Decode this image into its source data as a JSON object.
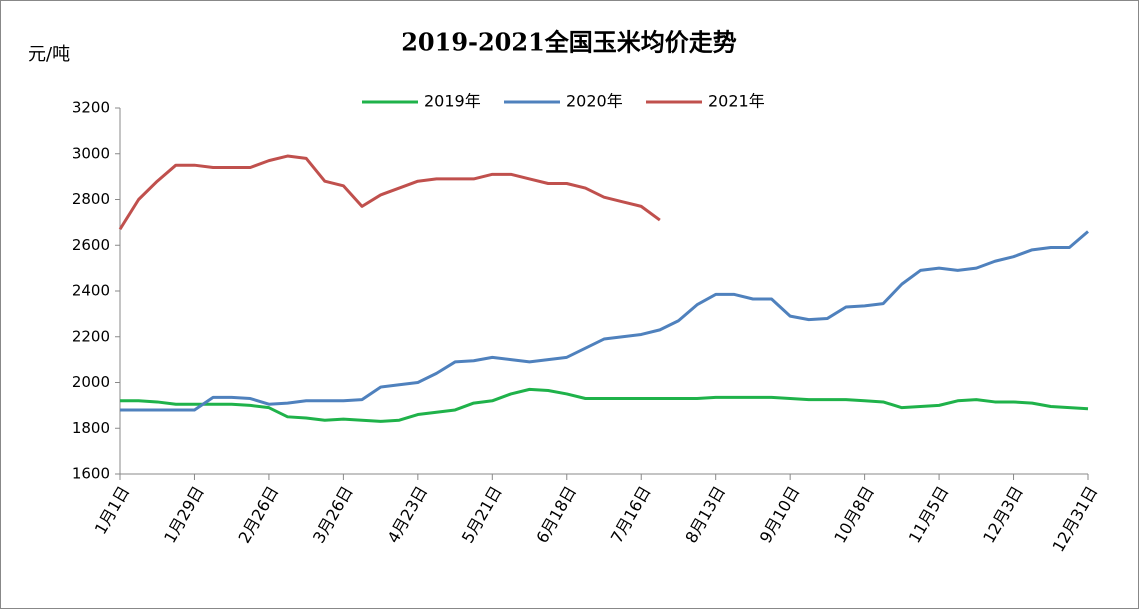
{
  "chart_data": {
    "type": "line",
    "title": "2019-2021全国玉米均价走势",
    "y_label": "元/吨",
    "x": [
      1,
      8,
      15,
      22,
      29,
      36,
      43,
      50,
      57,
      64,
      71,
      78,
      85,
      92,
      99,
      106,
      113,
      120,
      127,
      134,
      141,
      148,
      155,
      162,
      169,
      176,
      183,
      190,
      197,
      204,
      211,
      218,
      225,
      232,
      239,
      246,
      253,
      260,
      267,
      274,
      281,
      288,
      295,
      302,
      309,
      316,
      323,
      330,
      337,
      344,
      351,
      358,
      365
    ],
    "xlim": [
      1,
      365
    ],
    "xticks": [
      {
        "value": 1,
        "label": "1月1日"
      },
      {
        "value": 29,
        "label": "1月29日"
      },
      {
        "value": 57,
        "label": "2月26日"
      },
      {
        "value": 85,
        "label": "3月26日"
      },
      {
        "value": 113,
        "label": "4月23日"
      },
      {
        "value": 141,
        "label": "5月21日"
      },
      {
        "value": 169,
        "label": "6月18日"
      },
      {
        "value": 197,
        "label": "7月16日"
      },
      {
        "value": 225,
        "label": "8月13日"
      },
      {
        "value": 253,
        "label": "9月10日"
      },
      {
        "value": 281,
        "label": "10月8日"
      },
      {
        "value": 309,
        "label": "11月5日"
      },
      {
        "value": 337,
        "label": "12月3日"
      },
      {
        "value": 365,
        "label": "12月31日"
      }
    ],
    "ylim": [
      1600,
      3200
    ],
    "yticks": [
      1600,
      1800,
      2000,
      2200,
      2400,
      2600,
      2800,
      3000,
      3200
    ],
    "legend": "top",
    "series": [
      {
        "name": "2019年",
        "color": "#1fb24a",
        "values": [
          1920,
          1920,
          1915,
          1905,
          1905,
          1905,
          1905,
          1900,
          1890,
          1850,
          1845,
          1835,
          1840,
          1835,
          1830,
          1835,
          1860,
          1870,
          1880,
          1910,
          1920,
          1950,
          1970,
          1965,
          1950,
          1930,
          1930,
          1930,
          1930,
          1930,
          1930,
          1930,
          1935,
          1935,
          1935,
          1935,
          1930,
          1925,
          1925,
          1925,
          1920,
          1915,
          1890,
          1895,
          1900,
          1920,
          1925,
          1915,
          1915,
          1910,
          1895,
          1890,
          1885
        ]
      },
      {
        "name": "2020年",
        "color": "#4f81bd",
        "values": [
          1880,
          1880,
          1880,
          1880,
          1880,
          1935,
          1935,
          1930,
          1905,
          1910,
          1920,
          1920,
          1920,
          1925,
          1980,
          1990,
          2000,
          2040,
          2090,
          2095,
          2110,
          2100,
          2090,
          2100,
          2110,
          2150,
          2190,
          2200,
          2210,
          2230,
          2270,
          2340,
          2385,
          2385,
          2365,
          2365,
          2290,
          2275,
          2280,
          2330,
          2335,
          2345,
          2430,
          2490,
          2500,
          2490,
          2500,
          2530,
          2550,
          2580,
          2590,
          2590,
          2660
        ]
      },
      {
        "name": "2021年",
        "color": "#c0504d",
        "values": [
          2670,
          2800,
          2880,
          2950,
          2950,
          2940,
          2940,
          2940,
          2970,
          2990,
          2980,
          2880,
          2860,
          2770,
          2820,
          2850,
          2880,
          2890,
          2890,
          2890,
          2910,
          2910,
          2890,
          2870,
          2870,
          2850,
          2810,
          2790,
          2770,
          2710,
          null,
          null,
          null,
          null,
          null,
          null,
          null,
          null,
          null,
          null,
          null,
          null,
          null,
          null,
          null,
          null,
          null,
          null,
          null,
          null,
          null,
          null,
          null
        ]
      }
    ]
  }
}
